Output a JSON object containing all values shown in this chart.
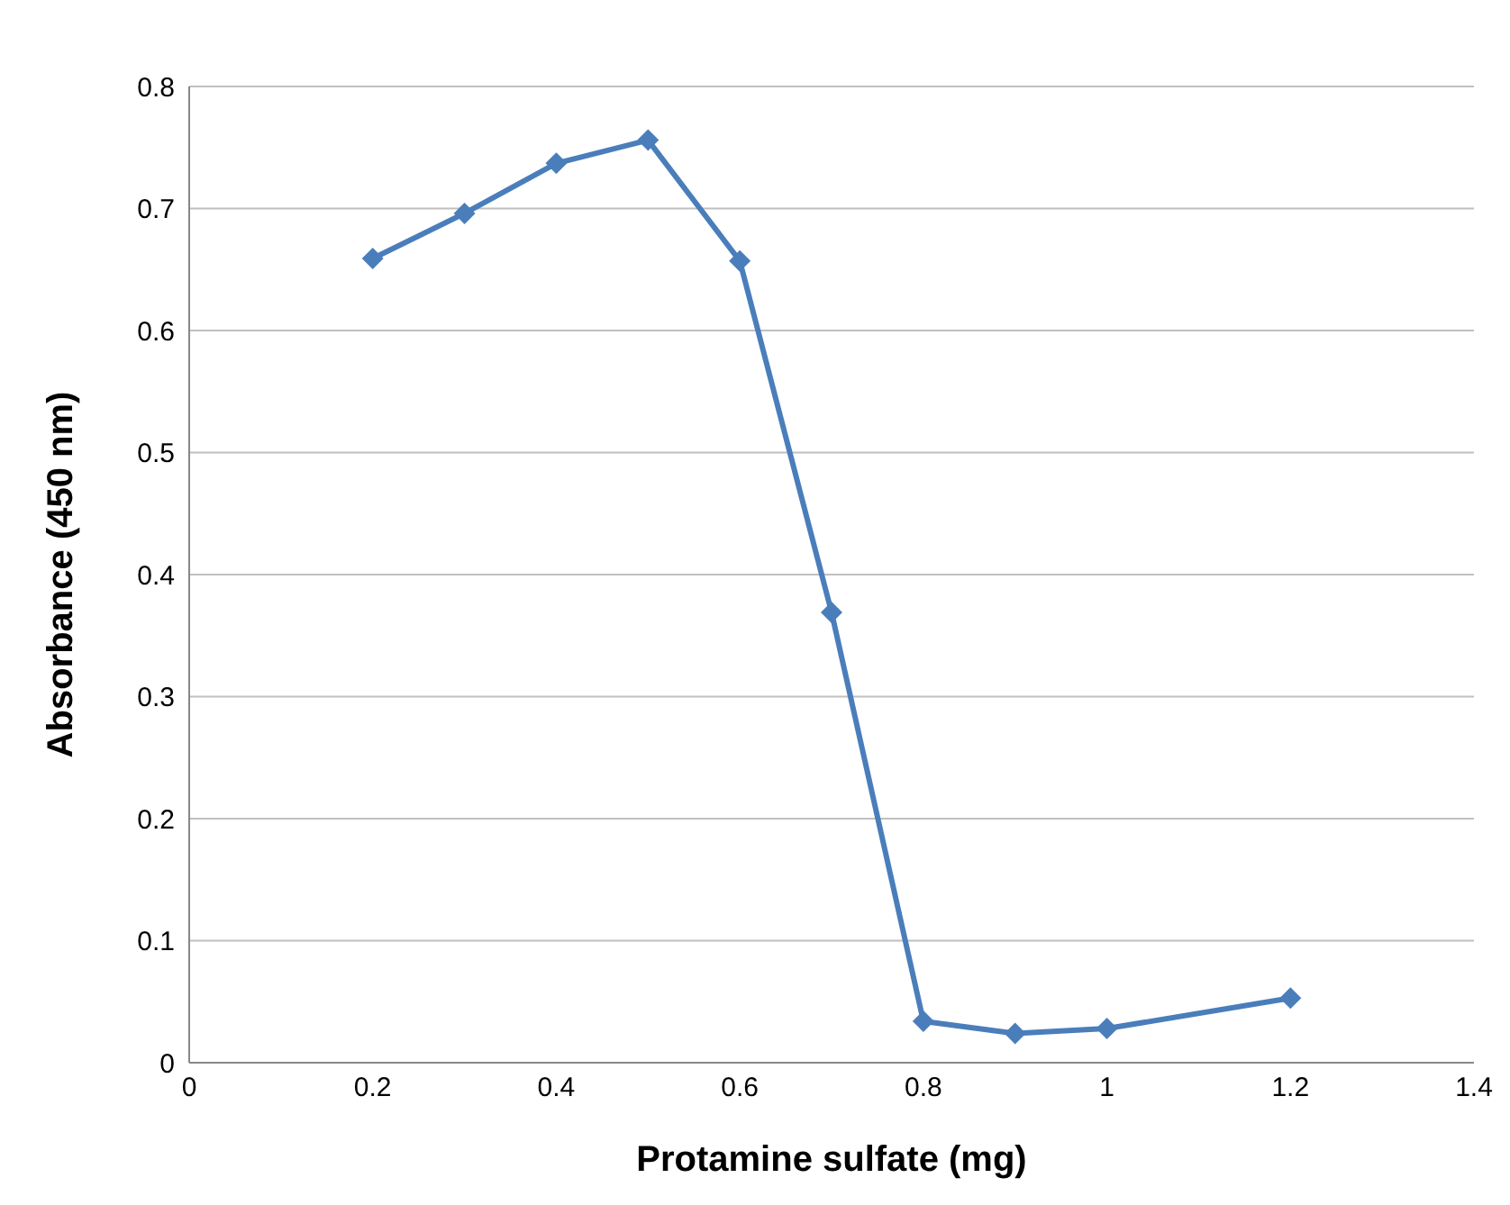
{
  "chart_data": {
    "type": "line",
    "xlabel": "Protamine sulfate (mg)",
    "ylabel": "Absorbance (450 nm)",
    "x": [
      0.2,
      0.3,
      0.4,
      0.5,
      0.6,
      0.7,
      0.8,
      0.9,
      1.0,
      1.2
    ],
    "series": [
      {
        "color": "#4a7ebb",
        "values": [
          0.659,
          0.696,
          0.737,
          0.756,
          0.657,
          0.369,
          0.034,
          0.024,
          0.028,
          0.053
        ]
      }
    ],
    "xlim": [
      0,
      1.4
    ],
    "xticks": [
      0,
      0.2,
      0.4,
      0.6,
      0.8,
      1,
      1.2,
      1.4
    ],
    "ylim": [
      0,
      0.8
    ],
    "yticks": [
      0,
      0.1,
      0.2,
      0.3,
      0.4,
      0.5,
      0.6,
      0.7,
      0.8
    ],
    "grid": "y",
    "marker": "diamond",
    "line_style": "solid",
    "legend": false
  }
}
